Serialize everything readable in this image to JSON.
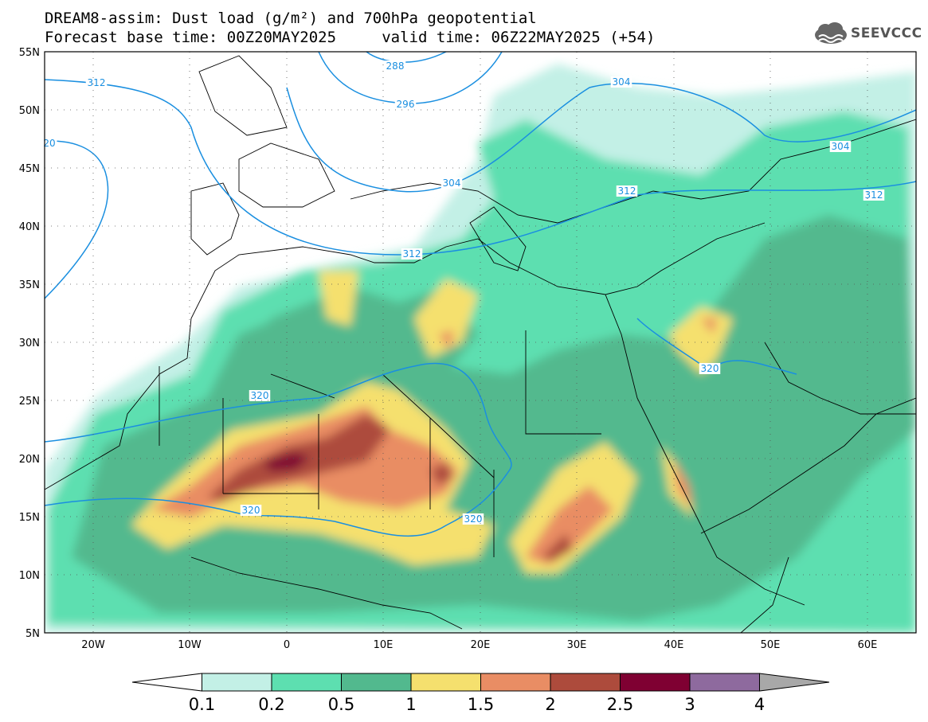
{
  "title_line1": "DREAM8-assim: Dust load (g/m²) and 700hPa geopotential",
  "title_line2": "Forecast base time: 00Z20MAY2025     valid time: 06Z22MAY2025 (+54)",
  "logo_text": "SEEVCCC",
  "map": {
    "lon_range": [
      -25,
      65
    ],
    "lat_range": [
      5,
      55
    ],
    "lat_labels": [
      "55N",
      "50N",
      "45N",
      "40N",
      "35N",
      "30N",
      "25N",
      "20N",
      "15N",
      "10N",
      "5N"
    ],
    "lon_labels": [
      "20W",
      "10W",
      "0",
      "10E",
      "20E",
      "30E",
      "40E",
      "50E",
      "60E"
    ],
    "contour_labels": [
      {
        "text": "288"
      },
      {
        "text": "296"
      },
      {
        "text": "304"
      },
      {
        "text": "304"
      },
      {
        "text": "304"
      },
      {
        "text": "312"
      },
      {
        "text": "312"
      },
      {
        "text": "312"
      },
      {
        "text": "312"
      },
      {
        "text": "20"
      },
      {
        "text": "320"
      },
      {
        "text": "320"
      },
      {
        "text": "320"
      },
      {
        "text": "320"
      }
    ],
    "colors": {
      "background": "#ffffff",
      "contour": "#1a8fe0",
      "coast": "#000000"
    }
  },
  "colorbar": {
    "labels": [
      "0.1",
      "0.2",
      "0.5",
      "1",
      "1.5",
      "2",
      "2.5",
      "3",
      "4"
    ],
    "colors": [
      "#ffffff",
      "#c3f0e6",
      "#5ddfb0",
      "#52b98e",
      "#f5e06e",
      "#e98d64",
      "#ad4b3c",
      "#7f0032",
      "#8e6a9e",
      "#a8a8a8"
    ]
  }
}
